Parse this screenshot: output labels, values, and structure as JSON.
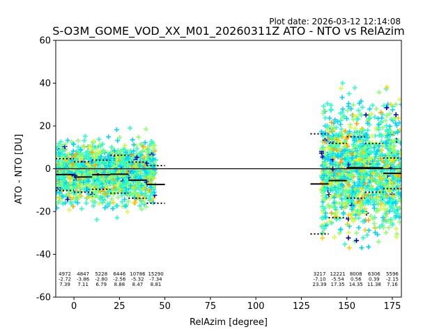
{
  "chart_data": {
    "type": "scatter",
    "plot_date": "Plot date: 2026-03-12 12:14:08",
    "title": "S-O3M_GOME_VOD_XX_M01_20260311Z ATO - NTO vs RelAzim",
    "xlabel": "RelAzim [degree]",
    "ylabel": "ATO - NTO [DU]",
    "xlim": [
      -10,
      180
    ],
    "ylim": [
      -60,
      60
    ],
    "xticks": [
      0,
      25,
      50,
      75,
      100,
      125,
      150,
      175
    ],
    "yticks": [
      -60,
      -40,
      -20,
      0,
      20,
      40,
      60
    ],
    "colors": {
      "ramp": [
        "#0000cc",
        "#00d4ff",
        "#2affc8",
        "#8cff70",
        "#d2ff40",
        "#ffd200",
        "#ffa500"
      ]
    },
    "point_clusters": [
      {
        "x_range": [
          -10,
          45
        ],
        "y_center": -2,
        "y_spread": 22
      },
      {
        "x_range": [
          136,
          180
        ],
        "y_center": 0,
        "y_spread": 45
      }
    ],
    "bins": [
      {
        "x_start": -10,
        "x_end": 0,
        "mean": -2.72,
        "std": 7.39,
        "count": "4972"
      },
      {
        "x_start": 0,
        "x_end": 10,
        "mean": -3.86,
        "std": 7.11,
        "count": "4847"
      },
      {
        "x_start": 10,
        "x_end": 20,
        "mean": -2.8,
        "std": 6.79,
        "count": "5228"
      },
      {
        "x_start": 20,
        "x_end": 30,
        "mean": -2.56,
        "std": 8.88,
        "count": "6446"
      },
      {
        "x_start": 30,
        "x_end": 40,
        "mean": -5.32,
        "std": 8.47,
        "count": "10786"
      },
      {
        "x_start": 40,
        "x_end": 50,
        "mean": -7.34,
        "std": 8.81,
        "count": "15290"
      },
      {
        "x_start": 130,
        "x_end": 140,
        "mean": -7.1,
        "std": 23.39,
        "count": "3217"
      },
      {
        "x_start": 140,
        "x_end": 150,
        "mean": -5.54,
        "std": 17.35,
        "count": "12221"
      },
      {
        "x_start": 150,
        "x_end": 160,
        "mean": 0.56,
        "std": 14.35,
        "count": "8008"
      },
      {
        "x_start": 160,
        "x_end": 170,
        "mean": 0.39,
        "std": 11.38,
        "count": "6306"
      },
      {
        "x_start": 170,
        "x_end": 180,
        "mean": -2.15,
        "std": 7.16,
        "count": "5596"
      }
    ],
    "zero_line": 0
  }
}
